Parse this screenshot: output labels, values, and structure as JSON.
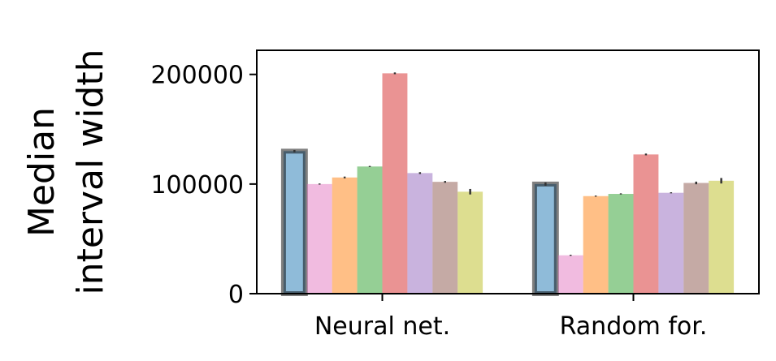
{
  "chart_data": {
    "type": "bar",
    "title": "",
    "xlabel": "",
    "ylabel": [
      "Median",
      "interval width"
    ],
    "categories": [
      "Neural net.",
      "Random for."
    ],
    "ylim": [
      0,
      222000
    ],
    "yticks": [
      0,
      100000,
      200000
    ],
    "ytick_labels": [
      "0",
      "100000",
      "200000"
    ],
    "grid": false,
    "legend": "none",
    "series": [
      {
        "values": [
          130000,
          100000
        ],
        "errors": [
          1000,
          1500
        ],
        "color": "#1f77b4",
        "highlighted": true
      },
      {
        "values": [
          100000,
          35000
        ],
        "errors": [
          500,
          500
        ],
        "color": "#e377c2"
      },
      {
        "values": [
          106000,
          89000
        ],
        "errors": [
          800,
          500
        ],
        "color": "#ff7f0e"
      },
      {
        "values": [
          116000,
          91000
        ],
        "errors": [
          500,
          500
        ],
        "color": "#2ca02c"
      },
      {
        "values": [
          201000,
          127000
        ],
        "errors": [
          800,
          800
        ],
        "color": "#d62728"
      },
      {
        "values": [
          110000,
          92000
        ],
        "errors": [
          800,
          500
        ],
        "color": "#9467bd"
      },
      {
        "values": [
          102000,
          101000
        ],
        "errors": [
          800,
          1200
        ],
        "color": "#8c564b"
      },
      {
        "values": [
          93000,
          103000
        ],
        "errors": [
          2500,
          2500
        ],
        "color": "#bcbd22"
      }
    ]
  }
}
